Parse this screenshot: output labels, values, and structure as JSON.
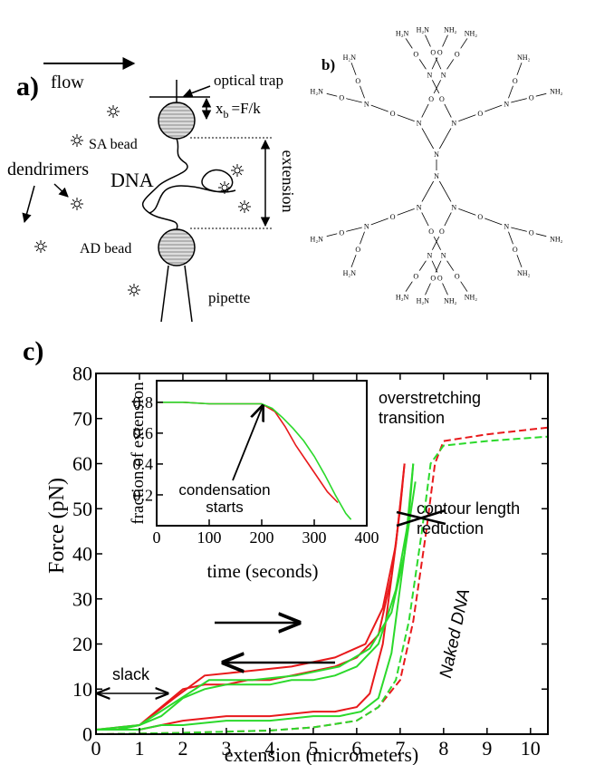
{
  "panel_a": {
    "label": "a)",
    "flow": "flow",
    "optical_trap": "optical trap",
    "x": "x",
    "x_sub": "b",
    "force": "=F/k",
    "sa_bead": "SA bead",
    "dendrimers": "dendrimers",
    "dna": "DNA",
    "extension": "extension",
    "ad_bead": "AD bead",
    "pipette": "pipette"
  },
  "panel_b": {
    "label": "b)",
    "nitrogen": "N",
    "oxygen": "O",
    "amine_left": "H₂N",
    "amine_right": "NH₂"
  },
  "chart_data": {
    "type": "line",
    "label": "c)",
    "xlabel": "extension (micrometers)",
    "ylabel": "Force (pN)",
    "xlim": [
      0,
      10.4
    ],
    "ylim": [
      0,
      80
    ],
    "xticks": [
      0,
      1,
      2,
      3,
      4,
      5,
      6,
      7,
      8,
      9,
      10
    ],
    "yticks": [
      0,
      10,
      20,
      30,
      40,
      50,
      60,
      70,
      80
    ],
    "series": [
      {
        "color": "#e8191b",
        "style": "solid",
        "x": [
          0,
          0.5,
          1,
          1.5,
          2,
          2.5,
          3,
          3.5,
          4,
          4.5,
          5,
          5.5,
          6,
          6.5,
          6.8,
          7,
          7.1
        ],
        "values": [
          1,
          1,
          2,
          6,
          10,
          11,
          11,
          12,
          12,
          13,
          14,
          15,
          17,
          22,
          35,
          50,
          60
        ]
      },
      {
        "color": "#e8191b",
        "style": "solid",
        "x": [
          7.1,
          6.9,
          6.6,
          6.3,
          6,
          5.5,
          5,
          4,
          3,
          2,
          1.5,
          1,
          0.5,
          0
        ],
        "values": [
          60,
          42,
          20,
          9,
          6,
          5,
          5,
          4,
          4,
          3,
          2,
          1,
          1,
          1
        ]
      },
      {
        "color": "#e8191b",
        "style": "solid",
        "x": [
          0,
          1,
          1.8,
          2.5,
          3.5,
          4.5,
          5.5,
          6.2,
          6.6,
          6.9,
          7.05
        ],
        "values": [
          1,
          2,
          8,
          13,
          14,
          15,
          17,
          20,
          28,
          42,
          55
        ]
      },
      {
        "color": "#2bd92b",
        "style": "solid",
        "x": [
          0,
          0.5,
          1,
          1.5,
          2,
          2.5,
          3,
          3.5,
          4,
          4.5,
          5,
          5.5,
          6,
          6.5,
          6.9,
          7.2,
          7.3
        ],
        "values": [
          1,
          1,
          2,
          4,
          8,
          10,
          11,
          11,
          11,
          12,
          12,
          13,
          15,
          20,
          32,
          48,
          60
        ]
      },
      {
        "color": "#2bd92b",
        "style": "solid",
        "x": [
          7.3,
          7.1,
          6.8,
          6.5,
          6.1,
          5.6,
          5,
          4,
          3,
          2,
          1.5,
          1,
          0.5,
          0
        ],
        "values": [
          60,
          40,
          18,
          8,
          5,
          4,
          4,
          3,
          3,
          2,
          2,
          1,
          1,
          1
        ]
      },
      {
        "color": "#2bd92b",
        "style": "solid",
        "x": [
          0,
          1,
          1.8,
          2.6,
          3.6,
          4.6,
          5.6,
          6.3,
          6.8,
          7.1,
          7.35
        ],
        "values": [
          1,
          2,
          7,
          12,
          12,
          13,
          15,
          19,
          27,
          40,
          56
        ]
      },
      {
        "color": "#e8191b",
        "style": "dashed",
        "x": [
          0,
          2,
          4,
          5,
          6,
          6.5,
          7,
          7.3,
          7.6,
          7.8,
          8,
          9,
          10.4
        ],
        "values": [
          0,
          0.3,
          0.8,
          1.5,
          3,
          6,
          12,
          25,
          45,
          60,
          65,
          66.5,
          68
        ]
      },
      {
        "color": "#2bd92b",
        "style": "dashed",
        "x": [
          0,
          2,
          4,
          5,
          6,
          6.5,
          6.9,
          7.2,
          7.5,
          7.7,
          8,
          9,
          10.4
        ],
        "values": [
          0,
          0.3,
          0.8,
          1.5,
          3,
          6,
          12,
          25,
          45,
          60,
          64,
          65,
          66
        ]
      }
    ],
    "annotations": {
      "overstretching": [
        "overstretching",
        "transition"
      ],
      "contour": [
        "contour length",
        "reduction"
      ],
      "naked": "Naked DNA",
      "slack": "slack"
    },
    "inset": {
      "type": "line",
      "xlabel": "time (seconds)",
      "ylabel": "fraction of extension",
      "xlim": [
        0,
        400
      ],
      "ylim": [
        0,
        0.94
      ],
      "xticks": [
        0,
        100,
        200,
        300,
        400
      ],
      "yticks": [
        0.2,
        0.4,
        0.6,
        0.8
      ],
      "series": [
        {
          "color": "#e8191b",
          "x": [
            0,
            50,
            100,
            150,
            200,
            225,
            245,
            265,
            285,
            305,
            325,
            345
          ],
          "values": [
            0.8,
            0.8,
            0.79,
            0.79,
            0.79,
            0.74,
            0.64,
            0.52,
            0.42,
            0.32,
            0.22,
            0.15
          ]
        },
        {
          "color": "#2bd92b",
          "x": [
            0,
            50,
            100,
            150,
            200,
            220,
            240,
            260,
            280,
            300,
            320,
            340,
            360,
            370
          ],
          "values": [
            0.8,
            0.8,
            0.79,
            0.79,
            0.79,
            0.76,
            0.7,
            0.63,
            0.55,
            0.45,
            0.33,
            0.2,
            0.08,
            0.04
          ]
        }
      ],
      "annotation": [
        "condensation",
        "starts"
      ]
    }
  }
}
